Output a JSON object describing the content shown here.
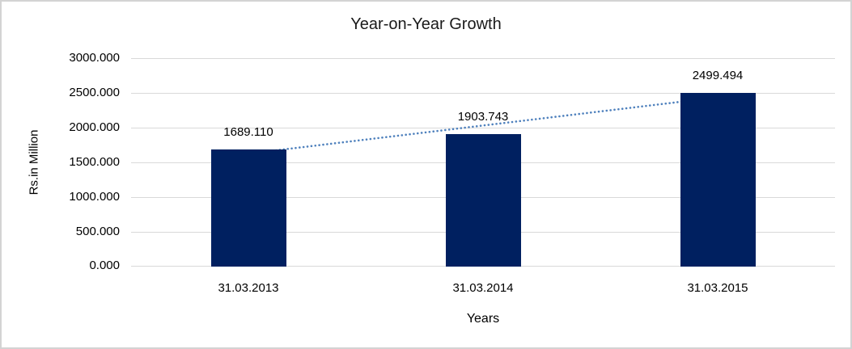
{
  "chart_data": {
    "type": "bar",
    "title": "Year-on-Year Growth",
    "xlabel": "Years",
    "ylabel": "Rs.in Million",
    "categories": [
      "31.03.2013",
      "31.03.2014",
      "31.03.2015"
    ],
    "values": [
      1689.11,
      1903.743,
      2499.494
    ],
    "data_labels": [
      "1689.110",
      "1903.743",
      "2499.494"
    ],
    "ylim": [
      0,
      3000
    ],
    "y_ticks": [
      {
        "value": 3000,
        "label": "3000.000"
      },
      {
        "value": 2500,
        "label": "2500.000"
      },
      {
        "value": 2000,
        "label": "2000.000"
      },
      {
        "value": 1500,
        "label": "1500.000"
      },
      {
        "value": 1000,
        "label": "1000.000"
      },
      {
        "value": 500,
        "label": "500.000"
      },
      {
        "value": 0,
        "label": "0.000"
      }
    ],
    "grid": "horizontal",
    "legend": "none",
    "trendline": {
      "type": "linear",
      "style": "dotted",
      "fitted_values_at_categories": [
        1625.6,
        2030.8,
        2436.0
      ]
    }
  },
  "colors": {
    "background": "#ffffff",
    "border": "#d3d3d3",
    "gridline": "#d9d9d9",
    "text": "#000000",
    "bar": "#002060",
    "trendline": "#4f81bd"
  }
}
